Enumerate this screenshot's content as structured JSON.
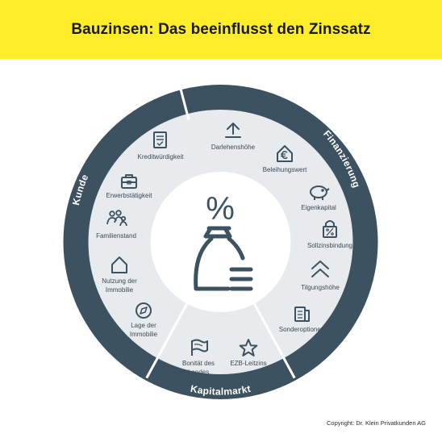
{
  "header": {
    "title": "Bauzinsen: Das beeinflusst den Zinssatz"
  },
  "segments": [
    {
      "label": "Finanzierung"
    },
    {
      "label": "Kapitalmarkt"
    },
    {
      "label": "Kunde"
    }
  ],
  "center": {
    "percent_symbol": "%"
  },
  "items": [
    {
      "label": "Darlehenshöhe",
      "icon": "arrow-up-icon"
    },
    {
      "label": "Beleihungswert",
      "icon": "house-euro-icon"
    },
    {
      "label": "Eigenkapital",
      "icon": "piggy-bank-icon"
    },
    {
      "label": "Sollzinsbindung",
      "icon": "lock-percent-icon"
    },
    {
      "label": "Tilgungshöhe",
      "icon": "double-chevron-up-icon"
    },
    {
      "label": "Sonderoptionen",
      "icon": "document-icon"
    },
    {
      "label": "EZB-Leitzins",
      "icon": "star-icon"
    },
    {
      "label": "Bonität des Landes",
      "lines": [
        "Bonität des",
        "Landes"
      ],
      "icon": "flag-icon"
    },
    {
      "label": "Lage der Immobilie",
      "lines": [
        "Lage der",
        "Immobilie"
      ],
      "icon": "compass-icon"
    },
    {
      "label": "Nutzung der Immobilie",
      "lines": [
        "Nutzung der",
        "Immobilie"
      ],
      "icon": "house-icon"
    },
    {
      "label": "Familienstand",
      "icon": "family-icon"
    },
    {
      "label": "Erwerbstätigkeit",
      "icon": "briefcase-icon"
    },
    {
      "label": "Kreditwürdigkeit",
      "icon": "checklist-icon"
    }
  ],
  "footer": {
    "copyright": "Copyright: Dr. Klein Privatkunden AG"
  },
  "colors": {
    "header_bg": "#ffed29",
    "ring_dark": "#3d5260",
    "inner_bg": "#e8ebee",
    "divider": "#ffffff",
    "center_circle": "#ffffff",
    "text": "#3d4a55",
    "ring_text": "#ffffff"
  }
}
